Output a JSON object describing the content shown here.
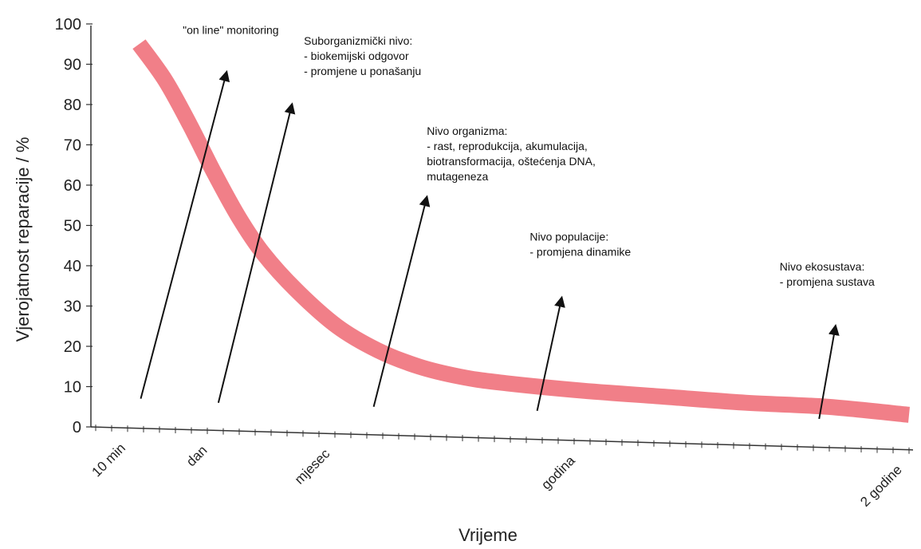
{
  "chart_data": {
    "type": "line",
    "title": "",
    "ylabel": "Vjerojatnost reparacije / %",
    "xlabel": "Vrijeme",
    "ylim": [
      0,
      100
    ],
    "yticks": [
      0,
      10,
      20,
      30,
      40,
      50,
      60,
      70,
      80,
      90,
      100
    ],
    "x_categories": [
      "10 min",
      "dan",
      "mjesec",
      "godina",
      "2 godine"
    ],
    "x_category_index": [
      0.5,
      1.5,
      3,
      6,
      10
    ],
    "xlim": [
      0,
      10
    ],
    "grid": false,
    "series": [
      {
        "name": "",
        "color": "#f07882",
        "points": [
          [
            0.58,
            95
          ],
          [
            0.9,
            86
          ],
          [
            1.2,
            75
          ],
          [
            1.5,
            63
          ],
          [
            1.8,
            52
          ],
          [
            2.1,
            43
          ],
          [
            2.5,
            34
          ],
          [
            3.0,
            25
          ],
          [
            3.5,
            19
          ],
          [
            4.0,
            15
          ],
          [
            4.5,
            12.5
          ],
          [
            5.0,
            11
          ],
          [
            6.0,
            9
          ],
          [
            7.0,
            7.5
          ],
          [
            8.0,
            6
          ],
          [
            9.0,
            5
          ],
          [
            10.0,
            3
          ]
        ]
      }
    ],
    "annotations": [
      {
        "lines": [
          "\"on line\" monitoring"
        ],
        "arrow_from": [
          0.6,
          7
        ],
        "arrow_to": [
          1.65,
          88
        ]
      },
      {
        "lines": [
          "Suborganizmički nivo:",
          "- biokemijski odgovor",
          "- promjene u ponašanju"
        ],
        "arrow_from": [
          1.55,
          6
        ],
        "arrow_to": [
          2.45,
          80
        ]
      },
      {
        "lines": [
          "Nivo organizma:",
          "- rast, reprodukcija, akumulacija,",
          "biotransformacija, oštećenja DNA,",
          "mutageneza"
        ],
        "arrow_from": [
          3.45,
          5
        ],
        "arrow_to": [
          4.1,
          57
        ]
      },
      {
        "lines": [
          "Nivo populacije:",
          "- promjena dinamike"
        ],
        "arrow_from": [
          5.45,
          4
        ],
        "arrow_to": [
          5.75,
          32
        ]
      },
      {
        "lines": [
          "Nivo ekosustava:",
          "- promjena sustava"
        ],
        "arrow_from": [
          8.9,
          2
        ],
        "arrow_to": [
          9.1,
          25
        ]
      }
    ]
  }
}
